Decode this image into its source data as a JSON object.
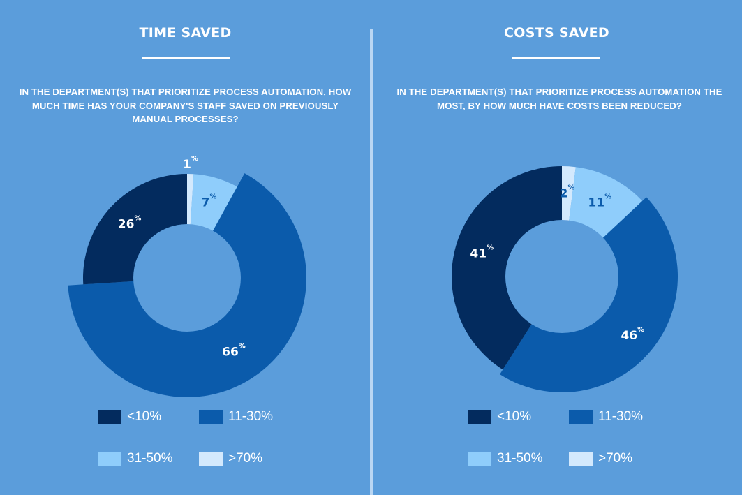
{
  "colors": {
    "background": "#5b9ddb",
    "divider": "#b9d6f3",
    "lt10": "#032b5e",
    "r11_30": "#0b5bab",
    "r31_50": "#8fcdfb",
    "gt70": "#d3e9fd"
  },
  "legend": [
    {
      "key": "lt10",
      "label": "<10%"
    },
    {
      "key": "r11_30",
      "label": "11-30%"
    },
    {
      "key": "r31_50",
      "label": "31-50%"
    },
    {
      "key": "gt70",
      "label": ">70%"
    }
  ],
  "chart_data": [
    {
      "type": "pie",
      "variant": "donut",
      "title": "TIME SAVED",
      "subtitle": "IN THE DEPARTMENT(S) THAT PRIORITIZE PROCESS AUTOMATION, HOW MUCH TIME HAS YOUR COMPANY'S STAFF SAVED ON PREVIOUSLY MANUAL PROCESSES?",
      "order": "clockwise from top",
      "slices": [
        {
          "category": ">70%",
          "key": "gt70",
          "value": 1,
          "label": "1",
          "label_color": "#ffffff",
          "exploded": false,
          "label_outside": true
        },
        {
          "category": "31-50%",
          "key": "r31_50",
          "value": 7,
          "label": "7",
          "label_color": "#0b5bab",
          "exploded": false
        },
        {
          "category": "11-30%",
          "key": "r11_30",
          "value": 66,
          "label": "66",
          "label_color": "#ffffff",
          "exploded": true
        },
        {
          "category": "<10%",
          "key": "lt10",
          "value": 26,
          "label": "26",
          "label_color": "#ffffff",
          "exploded": false
        }
      ],
      "legend_position": "bottom"
    },
    {
      "type": "pie",
      "variant": "donut",
      "title": "COSTS SAVED",
      "subtitle": "IN THE DEPARTMENT(S) THAT PRIORITIZE PROCESS AUTOMATION THE MOST, BY HOW MUCH HAVE COSTS BEEN REDUCED?",
      "order": "clockwise from top",
      "slices": [
        {
          "category": ">70%",
          "key": "gt70",
          "value": 2,
          "label": "2",
          "label_color": "#0b5bab",
          "exploded": false
        },
        {
          "category": "31-50%",
          "key": "r31_50",
          "value": 11,
          "label": "11",
          "label_color": "#0b5bab",
          "exploded": false
        },
        {
          "category": "11-30%",
          "key": "r11_30",
          "value": 46,
          "label": "46",
          "label_color": "#ffffff",
          "exploded": true
        },
        {
          "category": "<10%",
          "key": "lt10",
          "value": 41,
          "label": "41",
          "label_color": "#ffffff",
          "exploded": false
        }
      ],
      "legend_position": "bottom"
    }
  ],
  "percent_symbol": "%"
}
